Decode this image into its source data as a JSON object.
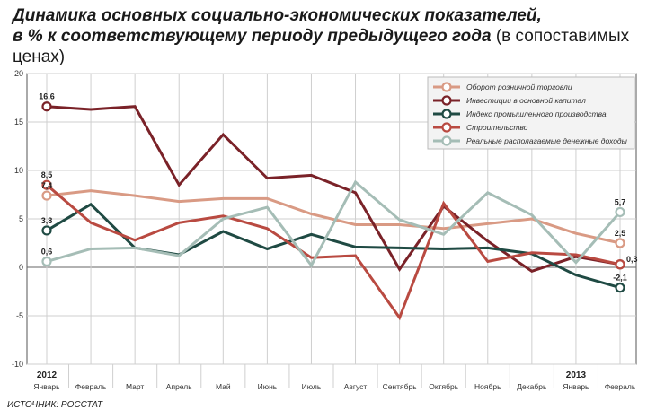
{
  "title_line1": "Динамика основных социально-экономических показателей,",
  "title_line2_bold": "в % к соответствующему периоду предыдущего года",
  "title_line2_light": "(в сопоставимых ценах)",
  "source": "ИСТОЧНИК: РОССТАТ",
  "chart_data": {
    "type": "line",
    "ylim": [
      -10,
      20
    ],
    "yticks": [
      -10,
      -5,
      0,
      5,
      10,
      15,
      20
    ],
    "grid": true,
    "legend_position": "top-right",
    "categories": [
      "Январь",
      "Февраль",
      "Март",
      "Апрель",
      "Май",
      "Июнь",
      "Июль",
      "Август",
      "Сентябрь",
      "Октябрь",
      "Ноябрь",
      "Декабрь",
      "Январь",
      "Февраль"
    ],
    "year_labels": [
      {
        "index": 0,
        "text": "2012"
      },
      {
        "index": 12,
        "text": "2013"
      }
    ],
    "series": [
      {
        "name": "Оборот розничной торговли",
        "color": "#d99a84",
        "values": [
          7.4,
          7.9,
          7.4,
          6.8,
          7.1,
          7.1,
          5.5,
          4.4,
          4.4,
          4.0,
          4.5,
          5.0,
          3.5,
          2.5
        ]
      },
      {
        "name": "Инвестиции в основной капитал",
        "color": "#7a2228",
        "values": [
          16.6,
          16.3,
          16.6,
          8.5,
          13.7,
          9.2,
          9.5,
          7.7,
          -0.2,
          6.3,
          2.7,
          -0.4,
          1.1,
          0.3
        ]
      },
      {
        "name": "Индекс промышленного производства",
        "color": "#1f4a43",
        "values": [
          3.8,
          6.5,
          2.0,
          1.3,
          3.7,
          1.9,
          3.4,
          2.1,
          2.0,
          1.9,
          2.0,
          1.4,
          -0.8,
          -2.1
        ]
      },
      {
        "name": "Строительство",
        "color": "#b94a41",
        "values": [
          8.5,
          4.6,
          2.8,
          4.6,
          5.3,
          4.0,
          1.0,
          1.2,
          -5.2,
          6.6,
          0.6,
          1.5,
          1.3,
          0.3
        ]
      },
      {
        "name": "Реальные располагаемые денежные доходы",
        "color": "#a5bdb6",
        "values": [
          0.6,
          1.9,
          2.0,
          1.2,
          5.0,
          6.2,
          0.2,
          8.8,
          4.9,
          3.4,
          7.7,
          5.4,
          0.5,
          5.7
        ]
      }
    ],
    "data_labels": [
      {
        "series": 1,
        "index": 0,
        "text": "16,6",
        "pos": "above"
      },
      {
        "series": 3,
        "index": 0,
        "text": "8,5",
        "pos": "above"
      },
      {
        "series": 0,
        "index": 0,
        "text": "7,4",
        "pos": "above"
      },
      {
        "series": 2,
        "index": 0,
        "text": "3,8",
        "pos": "above"
      },
      {
        "series": 4,
        "index": 0,
        "text": "0,6",
        "pos": "above"
      },
      {
        "series": 4,
        "index": 13,
        "text": "5,7",
        "pos": "above"
      },
      {
        "series": 0,
        "index": 13,
        "text": "2,5",
        "pos": "above"
      },
      {
        "series": 1,
        "index": 13,
        "text": "0,3",
        "pos": "right"
      },
      {
        "series": 2,
        "index": 13,
        "text": "-2,1",
        "pos": "above"
      }
    ]
  }
}
